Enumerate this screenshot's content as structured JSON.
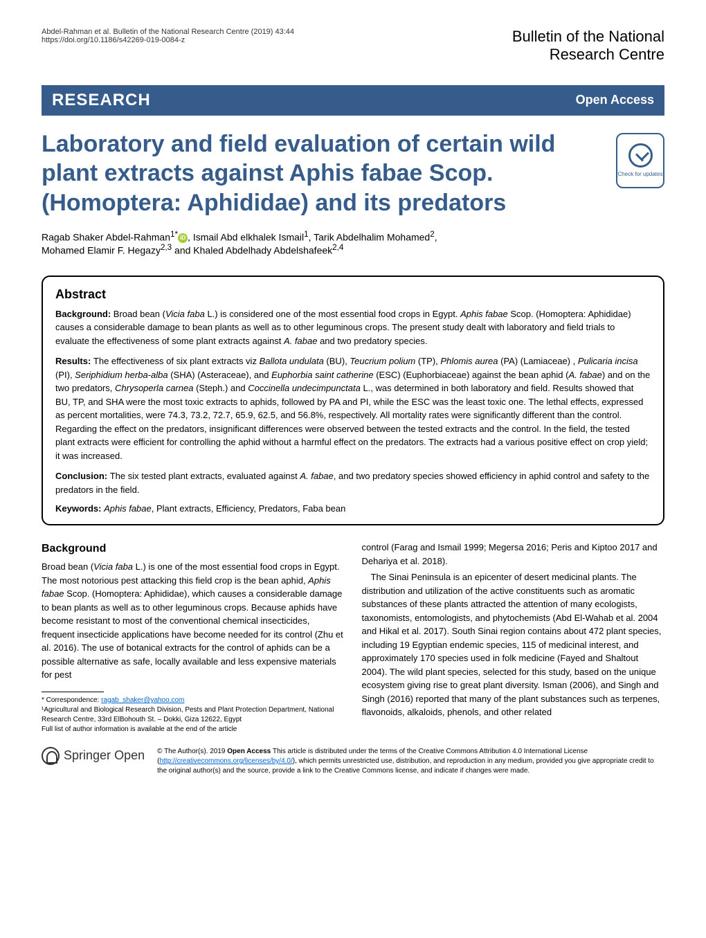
{
  "header": {
    "citation": "Abdel-Rahman et al. Bulletin of the National Research Centre          (2019) 43:44",
    "doi": "https://doi.org/10.1186/s42269-019-0084-z",
    "journal_line1": "Bulletin of the National",
    "journal_line2": "Research Centre"
  },
  "bar": {
    "research": "RESEARCH",
    "open_access": "Open Access"
  },
  "check_updates": "Check for updates",
  "title": "Laboratory and field evaluation of certain wild plant extracts against Aphis fabae Scop. (Homoptera: Aphididae) and its predators",
  "authors": {
    "line1_a": "Ragab Shaker Abdel-Rahman",
    "line1_sup1": "1*",
    "line1_b": ", Ismail Abd elkhalek Ismail",
    "line1_sup2": "1",
    "line1_c": ", Tarik Abdelhalim Mohamed",
    "line1_sup3": "2",
    "line1_d": ",",
    "line2_a": "Mohamed Elamir F. Hegazy",
    "line2_sup1": "2,3",
    "line2_b": " and Khaled Abdelhady Abdelshafeek",
    "line2_sup2": "2,4"
  },
  "abstract": {
    "heading": "Abstract",
    "background_label": "Background: ",
    "background_text_a": "Broad bean (",
    "background_italic_a": "Vicia faba",
    "background_text_b": " L.) is considered one of the most essential food crops in Egypt. ",
    "background_italic_b": "Aphis fabae",
    "background_text_c": " Scop. (Homoptera: Aphididae) causes a considerable damage to bean plants as well as to other leguminous crops. The present study dealt with laboratory and field trials to evaluate the effectiveness of some plant extracts against ",
    "background_italic_c": "A. fabae",
    "background_text_d": " and two predatory species.",
    "results_label": "Results: ",
    "results_text_a": "The effectiveness of six plant extracts viz ",
    "results_italic_a": "Ballota undulata",
    "results_text_b": " (BU), ",
    "results_italic_b": "Teucrium polium",
    "results_text_c": " (TP), ",
    "results_italic_c": "Phlomis aurea",
    "results_text_d": " (PA) (Lamiaceae) , ",
    "results_italic_d": "Pulicaria incisa",
    "results_text_e": " (PI), ",
    "results_italic_e": "Seriphidium herba-alba",
    "results_text_f": " (SHA) (Asteraceae), and ",
    "results_italic_f": "Euphorbia saint catherine",
    "results_text_g": " (ESC) (Euphorbiaceae) against the bean aphid (",
    "results_italic_g": "A. fabae",
    "results_text_h": ") and on the two predators, ",
    "results_italic_h": "Chrysoperla carnea",
    "results_text_i": " (Steph.) and ",
    "results_italic_i": "Coccinella undecimpunctata",
    "results_text_j": " L., was determined in both laboratory and field. Results showed that BU, TP, and SHA were the most toxic extracts to aphids, followed by PA and PI, while the ESC was the least toxic one. The lethal effects, expressed as percent mortalities, were 74.3, 73.2, 72.7, 65.9, 62.5, and 56.8%, respectively. All mortality rates were significantly different than the control. Regarding the effect on the predators, insignificant differences were observed between the tested extracts and the control. In the field, the tested plant extracts were efficient for controlling the aphid without a harmful effect on the predators. The extracts had a various positive effect on crop yield; it was increased.",
    "conclusion_label": "Conclusion: ",
    "conclusion_text_a": "The six tested plant extracts, evaluated against ",
    "conclusion_italic_a": "A. fabae",
    "conclusion_text_b": ", and two predatory species showed efficiency in aphid control and safety to the predators in the field.",
    "keywords_label": "Keywords: ",
    "keywords_italic": "Aphis fabae",
    "keywords_text": ", Plant extracts, Efficiency, Predators, Faba bean"
  },
  "body": {
    "background_heading": "Background",
    "left_p1_a": "Broad bean (",
    "left_p1_i1": "Vicia faba",
    "left_p1_b": " L.) is one of the most essential food crops in Egypt. The most notorious pest attacking this field crop is the bean aphid, ",
    "left_p1_i2": "Aphis fabae",
    "left_p1_c": " Scop. (Homoptera: Aphididae), which causes a considerable damage to bean plants as well as to other leguminous crops. Because aphids have become resistant to most of the conventional chemical insecticides, frequent insecticide applications have become needed for its control (Zhu et al. 2016). The use of botanical extracts for the control of aphids can be a possible alternative as safe, locally available and less expensive materials for pest",
    "right_p1": "control (Farag and Ismail 1999; Megersa 2016; Peris and Kiptoo 2017 and Dehariya et al. 2018).",
    "right_p2": "The Sinai Peninsula is an epicenter of desert medicinal plants. The distribution and utilization of the active constituents such as aromatic substances of these plants attracted the attention of many ecologists, taxonomists, entomologists, and phytochemists (Abd El-Wahab et al. 2004 and Hikal et al. 2017). South Sinai region contains about 472 plant species, including 19 Egyptian endemic species, 115 of medicinal interest, and approximately 170 species used in folk medicine (Fayed and Shaltout 2004). The wild plant species, selected for this study, based on the unique ecosystem giving rise to great plant diversity. Isman (2006), and Singh and Singh (2016) reported that many of the plant substances such as terpenes, flavonoids, alkaloids, phenols, and other related"
  },
  "footnotes": {
    "correspondence_label": "* Correspondence: ",
    "email": "ragab_shaker@yahoo.com",
    "affil1": "¹Agricultural and Biological Research Division, Pests and Plant Protection Department, National Research Centre, 33rd ElBohouth St. – Dokki, Giza 12622, Egypt",
    "affil2": "Full list of author information is available at the end of the article"
  },
  "footer": {
    "springer": "Springer",
    "open": "Open",
    "license_a": "© The Author(s). 2019 ",
    "license_bold": "Open Access",
    "license_b": " This article is distributed under the terms of the Creative Commons Attribution 4.0 International License (",
    "license_link": "http://creativecommons.org/licenses/by/4.0/",
    "license_c": "), which permits unrestricted use, distribution, and reproduction in any medium, provided you give appropriate credit to the original author(s) and the source, provide a link to the Creative Commons license, and indicate if changes were made."
  }
}
